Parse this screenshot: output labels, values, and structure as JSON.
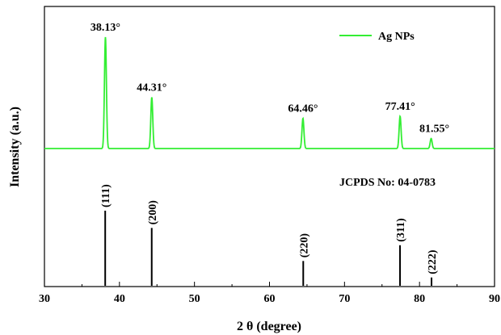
{
  "chart_data": {
    "type": "line",
    "title": "",
    "xlabel": "2 θ (degree)",
    "ylabel": "Intensity (a.u.)",
    "xlim": [
      30,
      90
    ],
    "x_ticks": [
      30,
      40,
      50,
      60,
      70,
      80,
      90
    ],
    "series_color": "#33ee33",
    "legend": {
      "label": "Ag NPs",
      "position": "top-right"
    },
    "peaks": [
      {
        "x": 38.13,
        "intensity": 1.0,
        "label": "38.13°"
      },
      {
        "x": 44.31,
        "intensity": 0.46,
        "label": "44.31°"
      },
      {
        "x": 64.46,
        "intensity": 0.27,
        "label": "64.46°"
      },
      {
        "x": 77.41,
        "intensity": 0.29,
        "label": "77.41°"
      },
      {
        "x": 81.55,
        "intensity": 0.09,
        "label": "81.55°"
      }
    ],
    "reference": {
      "label": "JCPDS No: 04-0783",
      "lines": [
        {
          "x": 38.1,
          "intensity": 1.0,
          "hkl": "(111)"
        },
        {
          "x": 44.3,
          "intensity": 0.77,
          "hkl": "(200)"
        },
        {
          "x": 64.5,
          "intensity": 0.33,
          "hkl": "(220)"
        },
        {
          "x": 77.4,
          "intensity": 0.54,
          "hkl": "(311)"
        },
        {
          "x": 81.6,
          "intensity": 0.11,
          "hkl": "(222)"
        }
      ]
    },
    "grid": false
  }
}
